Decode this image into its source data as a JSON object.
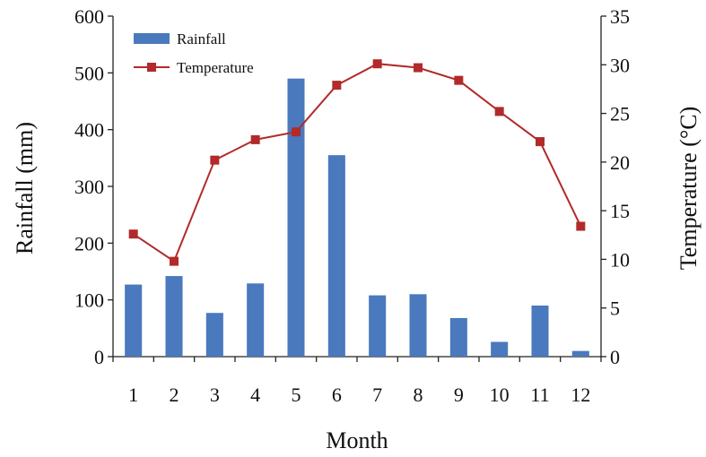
{
  "chart_data": {
    "type": "bar+line",
    "categories": [
      "1",
      "2",
      "3",
      "4",
      "5",
      "6",
      "7",
      "8",
      "9",
      "10",
      "11",
      "12"
    ],
    "xlabel": "Month",
    "ylabel": "Rainfall (mm)",
    "y2label": "Temperature (°C)",
    "ylim": [
      0,
      600
    ],
    "y2lim": [
      0,
      35
    ],
    "yticks": [
      "0",
      "100",
      "200",
      "300",
      "400",
      "500",
      "600"
    ],
    "y2ticks": [
      "0",
      "5",
      "10",
      "15",
      "20",
      "25",
      "30",
      "35"
    ],
    "legend_position": "top-left",
    "grid": false,
    "series": [
      {
        "name": "Rainfall",
        "type": "bar",
        "axis": "left",
        "color": "#4A79BD",
        "values": [
          127,
          142,
          77,
          129,
          490,
          355,
          108,
          110,
          68,
          26,
          90,
          10
        ]
      },
      {
        "name": "Temperature",
        "type": "line",
        "axis": "right",
        "color": "#B22A2A",
        "marker": "square",
        "values": [
          12.6,
          9.8,
          20.2,
          22.3,
          23.1,
          27.9,
          30.1,
          29.7,
          28.4,
          25.2,
          22.1,
          13.4
        ]
      }
    ]
  }
}
